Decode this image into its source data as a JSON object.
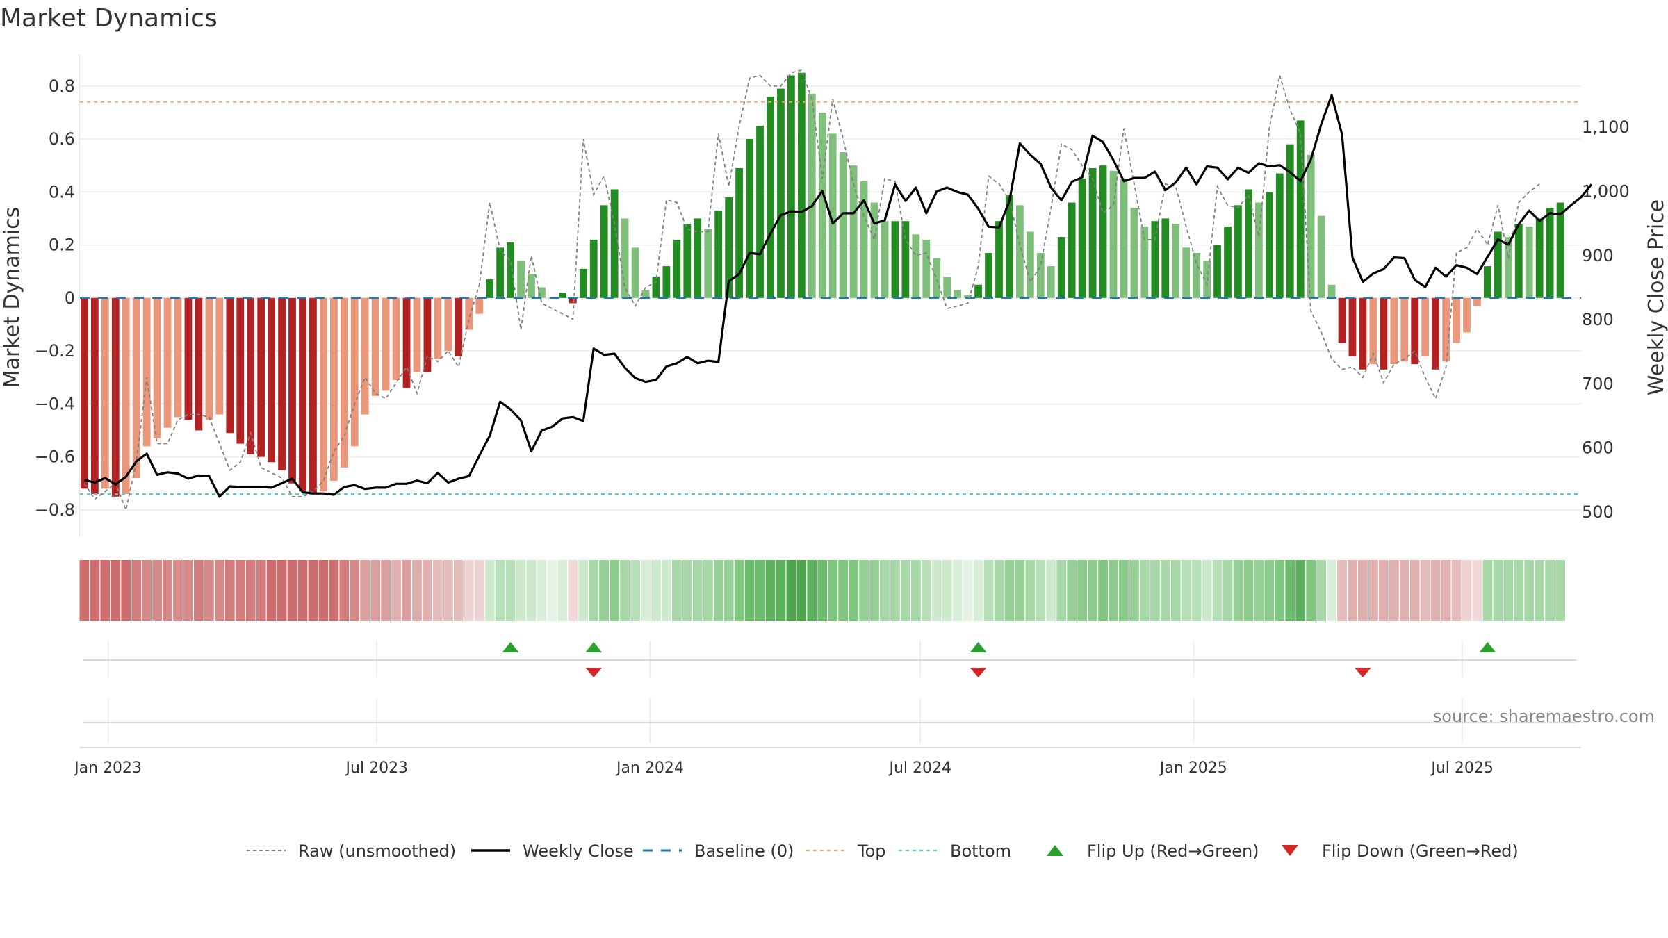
{
  "chart_data": {
    "type": "bar",
    "title": "Market Dynamics",
    "ylabel": "Market Dynamics",
    "y2label": "Weekly Close Price",
    "ylim": [
      -0.9,
      0.92
    ],
    "y2lim": [
      462,
      1214
    ],
    "yticks": [
      -0.8,
      -0.6,
      -0.4,
      -0.2,
      0,
      0.2,
      0.4,
      0.6,
      0.8
    ],
    "y2ticks": [
      500,
      600,
      700,
      800,
      900,
      1000,
      1100
    ],
    "y2tick_labels": [
      "500",
      "600",
      "700",
      "800",
      "900",
      "1,000",
      "1,100"
    ],
    "xlim": [
      "2022-12-13",
      "2025-09-19"
    ],
    "date_ticks": [
      {
        "date": "2023-01-01",
        "label": "Jan 2023"
      },
      {
        "date": "2023-07-01",
        "label": "Jul 2023"
      },
      {
        "date": "2024-01-01",
        "label": "Jan 2024"
      },
      {
        "date": "2024-07-01",
        "label": "Jul 2024"
      },
      {
        "date": "2025-01-01",
        "label": "Jan 2025"
      },
      {
        "date": "2025-07-01",
        "label": "Jul 2025"
      }
    ],
    "start_week": "2022-12-16",
    "top": 0.74,
    "bottom": -0.74,
    "bars": [
      -0.72,
      -0.74,
      -0.72,
      -0.75,
      -0.74,
      -0.68,
      -0.56,
      -0.53,
      -0.49,
      -0.45,
      -0.46,
      -0.5,
      -0.46,
      -0.44,
      -0.51,
      -0.55,
      -0.59,
      -0.6,
      -0.62,
      -0.65,
      -0.7,
      -0.73,
      -0.74,
      -0.73,
      -0.69,
      -0.64,
      -0.56,
      -0.44,
      -0.37,
      -0.35,
      -0.31,
      -0.34,
      -0.28,
      -0.28,
      -0.23,
      -0.2,
      -0.22,
      -0.12,
      -0.06,
      0.07,
      0.19,
      0.21,
      0.14,
      0.09,
      0.04,
      0.0,
      0.02,
      -0.02,
      0.11,
      0.22,
      0.35,
      0.41,
      0.3,
      0.19,
      0.03,
      0.08,
      0.12,
      0.22,
      0.28,
      0.3,
      0.26,
      0.33,
      0.38,
      0.49,
      0.6,
      0.65,
      0.76,
      0.79,
      0.84,
      0.85,
      0.77,
      0.7,
      0.62,
      0.55,
      0.5,
      0.44,
      0.36,
      0.29,
      0.29,
      0.29,
      0.24,
      0.22,
      0.15,
      0.08,
      0.03,
      0.01,
      0.05,
      0.17,
      0.29,
      0.39,
      0.35,
      0.25,
      0.17,
      0.12,
      0.23,
      0.36,
      0.45,
      0.49,
      0.5,
      0.48,
      0.45,
      0.34,
      0.27,
      0.29,
      0.3,
      0.28,
      0.19,
      0.17,
      0.14,
      0.2,
      0.27,
      0.35,
      0.41,
      0.36,
      0.4,
      0.47,
      0.58,
      0.67,
      0.54,
      0.31,
      0.05,
      -0.17,
      -0.22,
      -0.27,
      -0.25,
      -0.27,
      -0.25,
      -0.24,
      -0.25,
      -0.22,
      -0.27,
      -0.24,
      -0.17,
      -0.13,
      -0.03,
      0.12,
      0.25,
      0.23,
      0.28,
      0.27,
      0.3,
      0.34,
      0.36
    ],
    "raw": [
      -0.7,
      -0.76,
      -0.73,
      -0.7,
      -0.8,
      -0.62,
      -0.3,
      -0.55,
      -0.55,
      -0.46,
      -0.44,
      -0.44,
      -0.45,
      -0.55,
      -0.65,
      -0.62,
      -0.51,
      -0.64,
      -0.66,
      -0.68,
      -0.75,
      -0.75,
      -0.73,
      -0.69,
      -0.58,
      -0.52,
      -0.4,
      -0.3,
      -0.36,
      -0.38,
      -0.32,
      -0.26,
      -0.36,
      -0.22,
      -0.24,
      -0.2,
      -0.26,
      -0.08,
      0.05,
      0.36,
      0.18,
      0.14,
      -0.12,
      0.16,
      -0.02,
      -0.04,
      -0.06,
      -0.08,
      0.6,
      0.39,
      0.46,
      0.28,
      0.04,
      -0.03,
      0.04,
      0.06,
      0.37,
      0.36,
      0.26,
      0.25,
      0.25,
      0.62,
      0.42,
      0.65,
      0.83,
      0.84,
      0.8,
      0.8,
      0.85,
      0.86,
      0.75,
      0.45,
      0.75,
      0.6,
      0.43,
      0.31,
      0.22,
      0.45,
      0.44,
      0.22,
      0.16,
      0.17,
      0.07,
      -0.04,
      -0.03,
      -0.02,
      0.12,
      0.46,
      0.43,
      0.37,
      0.2,
      0.06,
      0.12,
      0.34,
      0.58,
      0.56,
      0.5,
      0.45,
      0.32,
      0.35,
      0.64,
      0.43,
      0.22,
      0.22,
      0.43,
      0.42,
      0.27,
      0.13,
      0.05,
      0.42,
      0.35,
      0.34,
      0.39,
      0.23,
      0.64,
      0.84,
      0.71,
      0.62,
      -0.05,
      -0.13,
      -0.23,
      -0.27,
      -0.26,
      -0.3,
      -0.21,
      -0.32,
      -0.25,
      -0.23,
      -0.2,
      -0.3,
      -0.38,
      -0.26,
      0.17,
      0.19,
      0.26,
      0.2,
      0.35,
      0.15,
      0.36,
      0.4,
      0.43
    ],
    "weekly_close": [
      550,
      546,
      553,
      543,
      555,
      579,
      591,
      558,
      562,
      560,
      552,
      557,
      556,
      524,
      540,
      539,
      539,
      539,
      538,
      545,
      552,
      531,
      529,
      529,
      527,
      539,
      542,
      536,
      538,
      538,
      544,
      544,
      549,
      545,
      561,
      546,
      552,
      556,
      588,
      619,
      672,
      660,
      643,
      595,
      627,
      633,
      646,
      648,
      642,
      755,
      745,
      747,
      725,
      709,
      703,
      706,
      727,
      732,
      742,
      732,
      736,
      734,
      860,
      871,
      904,
      902,
      934,
      963,
      969,
      968,
      977,
      1001,
      950,
      966,
      966,
      986,
      950,
      955,
      1011,
      985,
      1006,
      966,
      1000,
      1006,
      999,
      995,
      973,
      945,
      944,
      985,
      1075,
      1057,
      1043,
      1006,
      986,
      1015,
      1022,
      1087,
      1077,
      1049,
      1016,
      1021,
      1021,
      1031,
      1002,
      1014,
      1037,
      1011,
      1039,
      1037,
      1019,
      1037,
      1029,
      1044,
      1039,
      1041,
      1030,
      1016,
      1050,
      1105,
      1150,
      1089,
      897,
      859,
      872,
      879,
      897,
      896,
      862,
      851,
      881,
      867,
      885,
      881,
      871,
      898,
      925,
      917,
      949,
      970,
      954,
      966,
      964,
      978,
      991,
      1011
    ],
    "sentiment_bar_colors": [
      "#cd6e6e",
      "#cd6e6e",
      "#cd6e6e",
      "#cd6e6e",
      "#cd6e6e",
      "#d17d7d",
      "#d58a8a",
      "#d58a8a",
      "#d58a8a",
      "#d58a8a",
      "#d58a8a",
      "#d17d7d",
      "#d58a8a",
      "#d58a8a",
      "#d17d7d",
      "#d17d7d",
      "#d17d7d",
      "#d17d7d",
      "#cd6e6e",
      "#cd6e6e",
      "#cd6e6e",
      "#cd6e6e",
      "#cd6e6e",
      "#cd6e6e",
      "#cd6e6e",
      "#d17d7d",
      "#d58a8a",
      "#daa0a0",
      "#daa0a0",
      "#daa0a0",
      "#e0b0b0",
      "#daa0a0",
      "#e0b0b0",
      "#e0b0b0",
      "#e4bcbc",
      "#e4bcbc",
      "#e4bcbc",
      "#ecd2d2",
      "#ecd2d2",
      "#cbe8cb",
      "#b8e0b8",
      "#b8e0b8",
      "#cbe8cb",
      "#cbe8cb",
      "#d8eed8",
      "#e6f2e6",
      "#d8eed8",
      "#f1d8d8",
      "#cbe8cb",
      "#a8d8a8",
      "#96d096",
      "#8ccb8c",
      "#a8d8a8",
      "#b8e0b8",
      "#d8eed8",
      "#cbe8cb",
      "#cbe8cb",
      "#a8d8a8",
      "#a8d8a8",
      "#a8d8a8",
      "#a8d8a8",
      "#96d096",
      "#96d096",
      "#80c580",
      "#6cba6c",
      "#6cba6c",
      "#5db05d",
      "#5db05d",
      "#4ea54e",
      "#4ea54e",
      "#5db05d",
      "#6cba6c",
      "#80c580",
      "#80c580",
      "#80c580",
      "#96d096",
      "#96d096",
      "#a8d8a8",
      "#a8d8a8",
      "#a8d8a8",
      "#a8d8a8",
      "#b8e0b8",
      "#cbe8cb",
      "#cbe8cb",
      "#d8eed8",
      "#e6f2e6",
      "#d8eed8",
      "#b8e0b8",
      "#a8d8a8",
      "#96d096",
      "#96d096",
      "#a8d8a8",
      "#b8e0b8",
      "#cbe8cb",
      "#a8d8a8",
      "#96d096",
      "#8ccb8c",
      "#8ccb8c",
      "#80c580",
      "#8ccb8c",
      "#8ccb8c",
      "#96d096",
      "#a8d8a8",
      "#a8d8a8",
      "#a8d8a8",
      "#a8d8a8",
      "#b8e0b8",
      "#b8e0b8",
      "#cbe8cb",
      "#b8e0b8",
      "#a8d8a8",
      "#96d096",
      "#8ccb8c",
      "#96d096",
      "#8ccb8c",
      "#80c580",
      "#6cba6c",
      "#5db05d",
      "#80c580",
      "#a8d8a8",
      "#d8eed8",
      "#e4bcbc",
      "#e0b0b0",
      "#e0b0b0",
      "#e0b0b0",
      "#e0b0b0",
      "#e0b0b0",
      "#e0b0b0",
      "#e0b0b0",
      "#e4bcbc",
      "#e0b0b0",
      "#e0b0b0",
      "#e4bcbc",
      "#ecd2d2",
      "#f1d8d8",
      "#a8d8a8",
      "#a8d8a8",
      "#a8d8a8",
      "#a8d8a8",
      "#a8d8a8",
      "#a8d8a8",
      "#a8d8a8",
      "#a8d8a8"
    ],
    "flips_up": [
      "2023-09-29",
      "2023-11-24",
      "2024-08-09",
      "2025-07-18"
    ],
    "flips_down": [
      "2023-11-24",
      "2024-08-09",
      "2025-04-25"
    ],
    "legend_placement": "bottom",
    "grid": true,
    "source": "source: sharemaestro.com",
    "colors": {
      "pos_strong": "#228b22",
      "pos_weak": "#7fbf7b",
      "neg_strong": "#b22222",
      "neg_weak": "#e9967a",
      "raw": "#808080",
      "close": "#000000",
      "baseline": "#1f77b4",
      "top": "#f4a460",
      "bottom": "#48d1cc",
      "flip_up": "#2ca02c",
      "flip_down": "#d62728"
    },
    "legend": [
      {
        "label": "Raw (unsmoothed)",
        "kind": "raw"
      },
      {
        "label": "Weekly Close",
        "kind": "close"
      },
      {
        "label": "Baseline (0)",
        "kind": "baseline"
      },
      {
        "label": "Top",
        "kind": "top"
      },
      {
        "label": "Bottom",
        "kind": "bottom"
      },
      {
        "label": "Flip Up (Red→Green)",
        "kind": "flip_up"
      },
      {
        "label": "Flip Down (Green→Red)",
        "kind": "flip_down"
      }
    ]
  }
}
